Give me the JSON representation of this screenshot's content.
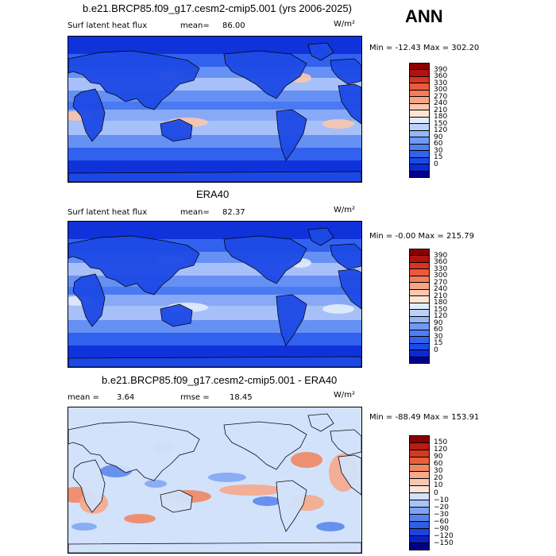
{
  "season": "ANN",
  "panels": [
    {
      "id": "model",
      "title": "b.e21.BRCP85.f09_g17.cesm2-cmip5.001 (yrs 2006-2025)",
      "variable": "Surf latent heat flux",
      "stat_label": "mean=",
      "stat_value": "86.00",
      "units": "W/m²",
      "minmax": "Min = -12.43 Max = 302.20",
      "palette": [
        "#00008b",
        "#0a2ad6",
        "#1d4ae6",
        "#3362ee",
        "#4f7ff2",
        "#6f99f4",
        "#96b6f7",
        "#bcd1fa",
        "#e2ecfc",
        "#fde5d6",
        "#fbc7ad",
        "#f9a585",
        "#f47d5e",
        "#ea5a3c",
        "#d93321",
        "#b01210",
        "#8b0000"
      ],
      "levels": [
        "390",
        "360",
        "330",
        "300",
        "270",
        "240",
        "210",
        "180",
        "150",
        "120",
        "90",
        "60",
        "30",
        "15",
        "0"
      ]
    },
    {
      "id": "obs",
      "title": "ERA40",
      "variable": "Surf latent heat flux",
      "stat_label": "mean=",
      "stat_value": "82.37",
      "units": "W/m²",
      "minmax": "Min = -0.00 Max = 215.79",
      "palette": [
        "#00008b",
        "#0a2ad6",
        "#1d4ae6",
        "#3362ee",
        "#4f7ff2",
        "#6f99f4",
        "#96b6f7",
        "#bcd1fa",
        "#e2ecfc",
        "#fde5d6",
        "#fbc7ad",
        "#f9a585",
        "#f47d5e",
        "#ea5a3c",
        "#d93321",
        "#b01210",
        "#8b0000"
      ],
      "levels": [
        "390",
        "360",
        "330",
        "300",
        "270",
        "240",
        "210",
        "180",
        "150",
        "120",
        "90",
        "60",
        "30",
        "15",
        "0"
      ]
    },
    {
      "id": "diff",
      "title": "b.e21.BRCP85.f09_g17.cesm2-cmip5.001 - ERA40",
      "mean_label": "mean =",
      "mean_value": "3.64",
      "rmse_label": "rmse =",
      "rmse_value": "18.45",
      "units": "W/m²",
      "minmax": "Min = -88.49 Max = 153.91",
      "palette": [
        "#00007f",
        "#0a1fc8",
        "#1c43dc",
        "#2f5fe4",
        "#5482ec",
        "#7ea3f2",
        "#a9c3f7",
        "#d2e2fb",
        "#fbe3d7",
        "#f9c8b4",
        "#f6a98b",
        "#f08763",
        "#e6603e",
        "#d33a22",
        "#b81c13",
        "#8b0000"
      ],
      "levels": [
        "150",
        "120",
        "90",
        "60",
        "30",
        "20",
        "10",
        "0",
        "−10",
        "−20",
        "−30",
        "−60",
        "−90",
        "−120",
        "−150"
      ]
    }
  ]
}
